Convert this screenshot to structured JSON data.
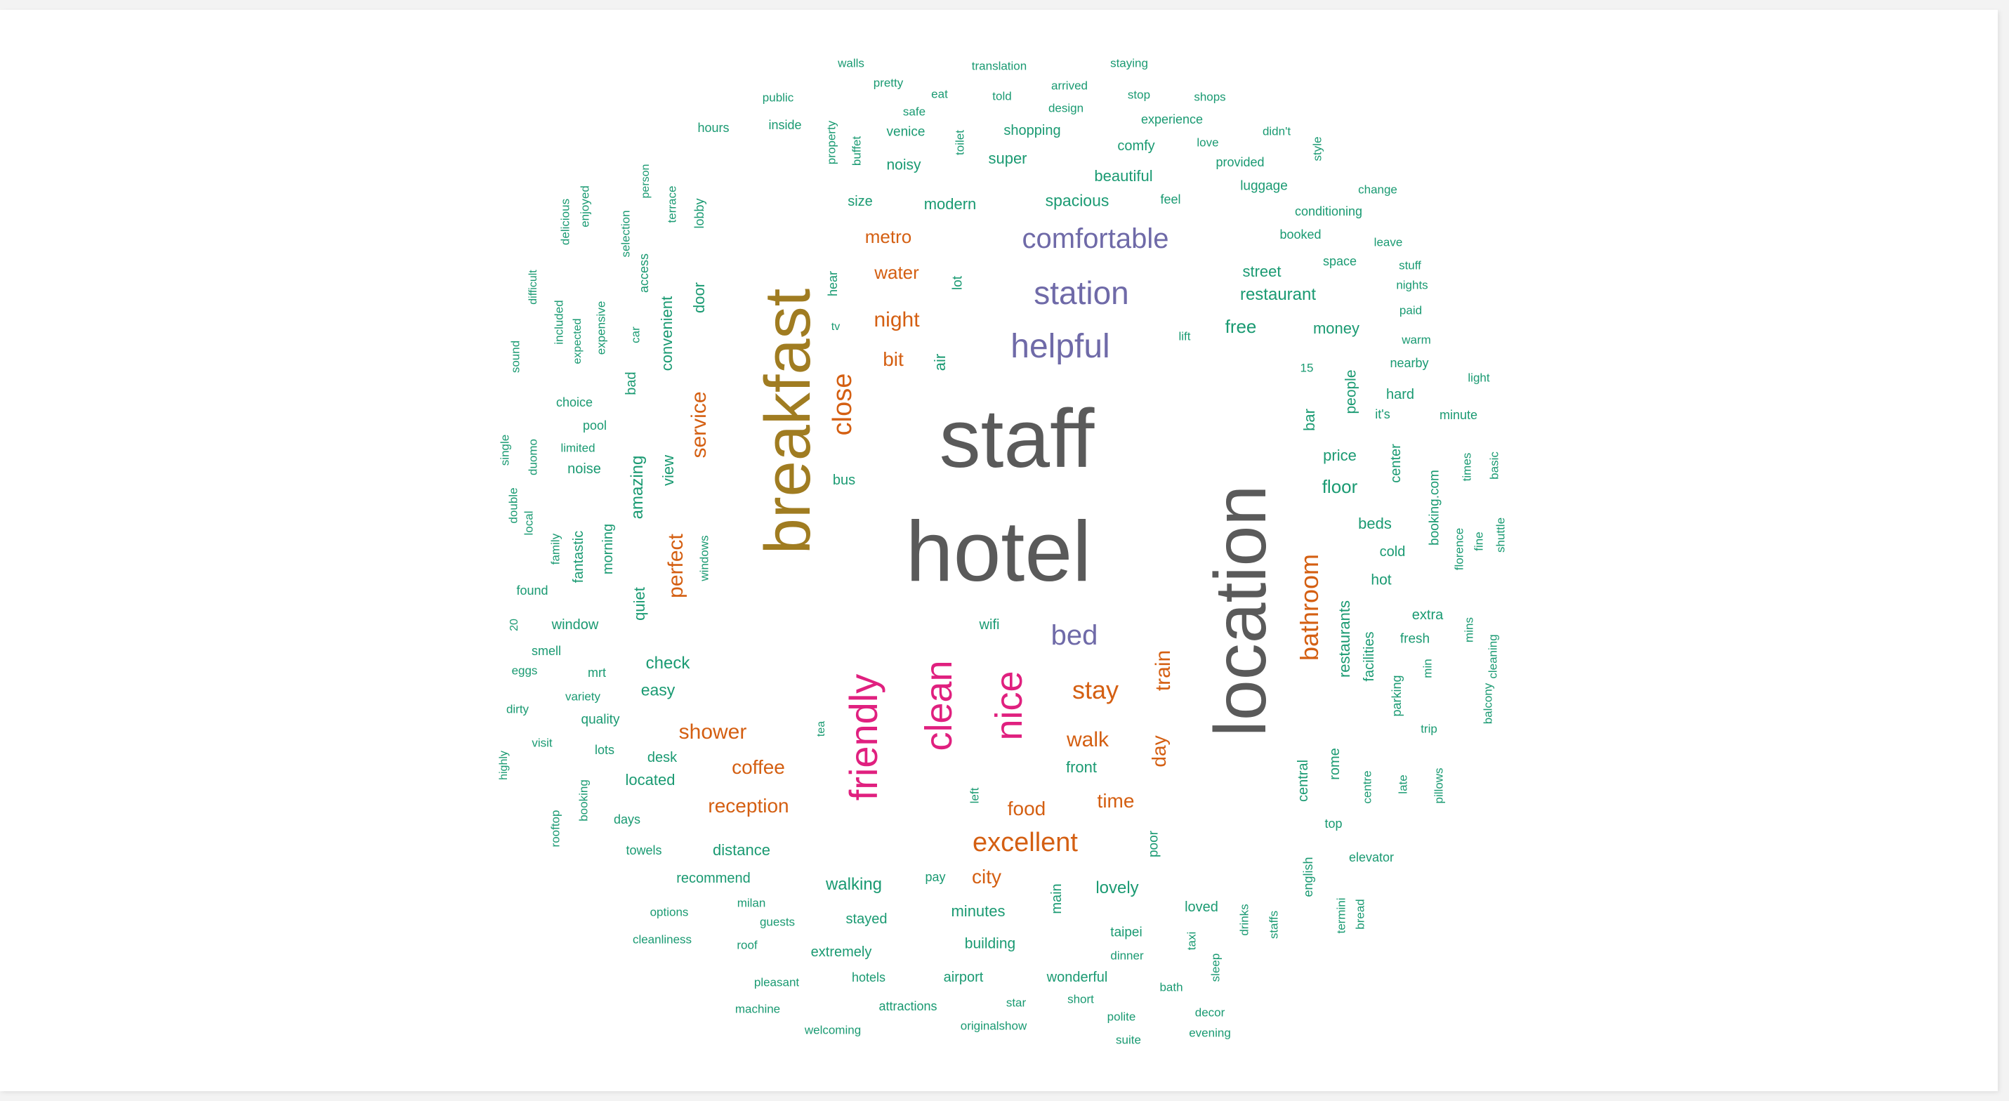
{
  "colors": {
    "gray": "#5a5a5a",
    "olive": "#a07c21",
    "orange": "#d45f12",
    "purple": "#6f6aa8",
    "pink": "#e0207f",
    "green": "#1a9a72"
  },
  "words": [
    {
      "t": "hotel",
      "c": "gray",
      "v": false
    },
    {
      "t": "staff",
      "c": "gray",
      "v": false
    },
    {
      "t": "location",
      "c": "gray",
      "v": true
    },
    {
      "t": "breakfast",
      "c": "olive",
      "v": true
    },
    {
      "t": "comfortable",
      "c": "purple",
      "v": false
    },
    {
      "t": "station",
      "c": "purple",
      "v": false
    },
    {
      "t": "helpful",
      "c": "purple",
      "v": false
    },
    {
      "t": "bed",
      "c": "purple",
      "v": false
    },
    {
      "t": "friendly",
      "c": "pink",
      "v": true
    },
    {
      "t": "clean",
      "c": "pink",
      "v": true
    },
    {
      "t": "nice",
      "c": "pink",
      "v": true
    },
    {
      "t": "metro",
      "c": "orange",
      "v": false
    },
    {
      "t": "water",
      "c": "orange",
      "v": false
    },
    {
      "t": "night",
      "c": "orange",
      "v": false
    },
    {
      "t": "bit",
      "c": "orange",
      "v": false
    },
    {
      "t": "close",
      "c": "orange",
      "v": true
    },
    {
      "t": "service",
      "c": "orange",
      "v": true
    },
    {
      "t": "perfect",
      "c": "orange",
      "v": true
    },
    {
      "t": "shower",
      "c": "orange",
      "v": false
    },
    {
      "t": "coffee",
      "c": "orange",
      "v": false
    },
    {
      "t": "reception",
      "c": "orange",
      "v": false
    },
    {
      "t": "excellent",
      "c": "orange",
      "v": false
    },
    {
      "t": "city",
      "c": "orange",
      "v": false
    },
    {
      "t": "food",
      "c": "orange",
      "v": false
    },
    {
      "t": "time",
      "c": "orange",
      "v": false
    },
    {
      "t": "walk",
      "c": "orange",
      "v": false
    },
    {
      "t": "stay",
      "c": "orange",
      "v": false
    },
    {
      "t": "train",
      "c": "orange",
      "v": true
    },
    {
      "t": "day",
      "c": "orange",
      "v": true
    },
    {
      "t": "bathroom",
      "c": "orange",
      "v": true
    },
    {
      "t": "walls",
      "c": "green",
      "v": false
    },
    {
      "t": "translation",
      "c": "green",
      "v": false
    },
    {
      "t": "staying",
      "c": "green",
      "v": false
    },
    {
      "t": "pretty",
      "c": "green",
      "v": false
    },
    {
      "t": "arrived",
      "c": "green",
      "v": false
    },
    {
      "t": "public",
      "c": "green",
      "v": false
    },
    {
      "t": "eat",
      "c": "green",
      "v": false
    },
    {
      "t": "told",
      "c": "green",
      "v": false
    },
    {
      "t": "stop",
      "c": "green",
      "v": false
    },
    {
      "t": "shops",
      "c": "green",
      "v": false
    },
    {
      "t": "safe",
      "c": "green",
      "v": false
    },
    {
      "t": "design",
      "c": "green",
      "v": false
    },
    {
      "t": "experience",
      "c": "green",
      "v": false
    },
    {
      "t": "hours",
      "c": "green",
      "v": false
    },
    {
      "t": "inside",
      "c": "green",
      "v": false
    },
    {
      "t": "venice",
      "c": "green",
      "v": false
    },
    {
      "t": "shopping",
      "c": "green",
      "v": false
    },
    {
      "t": "didn't",
      "c": "green",
      "v": false
    },
    {
      "t": "property",
      "c": "green",
      "v": true
    },
    {
      "t": "buffet",
      "c": "green",
      "v": true
    },
    {
      "t": "toilet",
      "c": "green",
      "v": true
    },
    {
      "t": "comfy",
      "c": "green",
      "v": false
    },
    {
      "t": "love",
      "c": "green",
      "v": false
    },
    {
      "t": "style",
      "c": "green",
      "v": true
    },
    {
      "t": "super",
      "c": "green",
      "v": false
    },
    {
      "t": "noisy",
      "c": "green",
      "v": false
    },
    {
      "t": "provided",
      "c": "green",
      "v": false
    },
    {
      "t": "person",
      "c": "green",
      "v": true
    },
    {
      "t": "beautiful",
      "c": "green",
      "v": false
    },
    {
      "t": "luggage",
      "c": "green",
      "v": false
    },
    {
      "t": "change",
      "c": "green",
      "v": false
    },
    {
      "t": "terrace",
      "c": "green",
      "v": true
    },
    {
      "t": "enjoyed",
      "c": "green",
      "v": true
    },
    {
      "t": "size",
      "c": "green",
      "v": false
    },
    {
      "t": "modern",
      "c": "green",
      "v": false
    },
    {
      "t": "spacious",
      "c": "green",
      "v": false
    },
    {
      "t": "feel",
      "c": "green",
      "v": false
    },
    {
      "t": "conditioning",
      "c": "green",
      "v": false
    },
    {
      "t": "lobby",
      "c": "green",
      "v": true
    },
    {
      "t": "delicious",
      "c": "green",
      "v": true
    },
    {
      "t": "selection",
      "c": "green",
      "v": true
    },
    {
      "t": "booked",
      "c": "green",
      "v": false
    },
    {
      "t": "leave",
      "c": "green",
      "v": false
    },
    {
      "t": "space",
      "c": "green",
      "v": false
    },
    {
      "t": "stuff",
      "c": "green",
      "v": false
    },
    {
      "t": "access",
      "c": "green",
      "v": true
    },
    {
      "t": "street",
      "c": "green",
      "v": false
    },
    {
      "t": "difficult",
      "c": "green",
      "v": true
    },
    {
      "t": "hear",
      "c": "green",
      "v": true
    },
    {
      "t": "lot",
      "c": "green",
      "v": true
    },
    {
      "t": "nights",
      "c": "green",
      "v": false
    },
    {
      "t": "door",
      "c": "green",
      "v": true
    },
    {
      "t": "restaurant",
      "c": "green",
      "v": false
    },
    {
      "t": "paid",
      "c": "green",
      "v": false
    },
    {
      "t": "convenient",
      "c": "green",
      "v": true
    },
    {
      "t": "expensive",
      "c": "green",
      "v": true
    },
    {
      "t": "included",
      "c": "green",
      "v": true
    },
    {
      "t": "expected",
      "c": "green",
      "v": true
    },
    {
      "t": "car",
      "c": "green",
      "v": true
    },
    {
      "t": "tv",
      "c": "green",
      "v": false
    },
    {
      "t": "free",
      "c": "green",
      "v": false
    },
    {
      "t": "money",
      "c": "green",
      "v": false
    },
    {
      "t": "lift",
      "c": "green",
      "v": false
    },
    {
      "t": "warm",
      "c": "green",
      "v": false
    },
    {
      "t": "sound",
      "c": "green",
      "v": true
    },
    {
      "t": "air",
      "c": "green",
      "v": true
    },
    {
      "t": "nearby",
      "c": "green",
      "v": false
    },
    {
      "t": "15",
      "c": "green",
      "v": false
    },
    {
      "t": "light",
      "c": "green",
      "v": false
    },
    {
      "t": "bad",
      "c": "green",
      "v": true
    },
    {
      "t": "people",
      "c": "green",
      "v": true
    },
    {
      "t": "hard",
      "c": "green",
      "v": false
    },
    {
      "t": "choice",
      "c": "green",
      "v": false
    },
    {
      "t": "bar",
      "c": "green",
      "v": true
    },
    {
      "t": "it's",
      "c": "green",
      "v": false
    },
    {
      "t": "minute",
      "c": "green",
      "v": false
    },
    {
      "t": "pool",
      "c": "green",
      "v": false
    },
    {
      "t": "single",
      "c": "green",
      "v": true
    },
    {
      "t": "limited",
      "c": "green",
      "v": false
    },
    {
      "t": "duomo",
      "c": "green",
      "v": true
    },
    {
      "t": "price",
      "c": "green",
      "v": false
    },
    {
      "t": "noise",
      "c": "green",
      "v": false
    },
    {
      "t": "amazing",
      "c": "green",
      "v": true
    },
    {
      "t": "view",
      "c": "green",
      "v": true
    },
    {
      "t": "bus",
      "c": "green",
      "v": false
    },
    {
      "t": "center",
      "c": "green",
      "v": true
    },
    {
      "t": "times",
      "c": "green",
      "v": true
    },
    {
      "t": "basic",
      "c": "green",
      "v": true
    },
    {
      "t": "floor",
      "c": "green",
      "v": false
    },
    {
      "t": "booking.com",
      "c": "green",
      "v": true
    },
    {
      "t": "double",
      "c": "green",
      "v": true
    },
    {
      "t": "local",
      "c": "green",
      "v": true
    },
    {
      "t": "beds",
      "c": "green",
      "v": false
    },
    {
      "t": "family",
      "c": "green",
      "v": true
    },
    {
      "t": "fantastic",
      "c": "green",
      "v": true
    },
    {
      "t": "morning",
      "c": "green",
      "v": true
    },
    {
      "t": "windows",
      "c": "green",
      "v": true
    },
    {
      "t": "cold",
      "c": "green",
      "v": false
    },
    {
      "t": "florence",
      "c": "green",
      "v": true
    },
    {
      "t": "fine",
      "c": "green",
      "v": true
    },
    {
      "t": "shuttle",
      "c": "green",
      "v": true
    },
    {
      "t": "hot",
      "c": "green",
      "v": false
    },
    {
      "t": "found",
      "c": "green",
      "v": false
    },
    {
      "t": "quiet",
      "c": "green",
      "v": true
    },
    {
      "t": "extra",
      "c": "green",
      "v": false
    },
    {
      "t": "20",
      "c": "green",
      "v": true
    },
    {
      "t": "window",
      "c": "green",
      "v": false
    },
    {
      "t": "wifi",
      "c": "green",
      "v": false
    },
    {
      "t": "mins",
      "c": "green",
      "v": true
    },
    {
      "t": "fresh",
      "c": "green",
      "v": false
    },
    {
      "t": "restaurants",
      "c": "green",
      "v": true
    },
    {
      "t": "facilities",
      "c": "green",
      "v": true
    },
    {
      "t": "cleaning",
      "c": "green",
      "v": true
    },
    {
      "t": "smell",
      "c": "green",
      "v": false
    },
    {
      "t": "check",
      "c": "green",
      "v": false
    },
    {
      "t": "eggs",
      "c": "green",
      "v": false
    },
    {
      "t": "mrt",
      "c": "green",
      "v": false
    },
    {
      "t": "min",
      "c": "green",
      "v": true
    },
    {
      "t": "easy",
      "c": "green",
      "v": false
    },
    {
      "t": "variety",
      "c": "green",
      "v": false
    },
    {
      "t": "parking",
      "c": "green",
      "v": true
    },
    {
      "t": "balcony",
      "c": "green",
      "v": true
    },
    {
      "t": "dirty",
      "c": "green",
      "v": false
    },
    {
      "t": "quality",
      "c": "green",
      "v": false
    },
    {
      "t": "trip",
      "c": "green",
      "v": false
    },
    {
      "t": "tea",
      "c": "green",
      "v": true
    },
    {
      "t": "visit",
      "c": "green",
      "v": false
    },
    {
      "t": "lots",
      "c": "green",
      "v": false
    },
    {
      "t": "highly",
      "c": "green",
      "v": true
    },
    {
      "t": "desk",
      "c": "green",
      "v": false
    },
    {
      "t": "front",
      "c": "green",
      "v": false
    },
    {
      "t": "located",
      "c": "green",
      "v": false
    },
    {
      "t": "central",
      "c": "green",
      "v": true
    },
    {
      "t": "rome",
      "c": "green",
      "v": true
    },
    {
      "t": "centre",
      "c": "green",
      "v": true
    },
    {
      "t": "late",
      "c": "green",
      "v": true
    },
    {
      "t": "pillows",
      "c": "green",
      "v": true
    },
    {
      "t": "left",
      "c": "green",
      "v": true
    },
    {
      "t": "booking",
      "c": "green",
      "v": true
    },
    {
      "t": "rooftop",
      "c": "green",
      "v": true
    },
    {
      "t": "days",
      "c": "green",
      "v": false
    },
    {
      "t": "top",
      "c": "green",
      "v": false
    },
    {
      "t": "poor",
      "c": "green",
      "v": true
    },
    {
      "t": "towels",
      "c": "green",
      "v": false
    },
    {
      "t": "distance",
      "c": "green",
      "v": false
    },
    {
      "t": "elevator",
      "c": "green",
      "v": false
    },
    {
      "t": "pay",
      "c": "green",
      "v": false
    },
    {
      "t": "recommend",
      "c": "green",
      "v": false
    },
    {
      "t": "english",
      "c": "green",
      "v": true
    },
    {
      "t": "walking",
      "c": "green",
      "v": false
    },
    {
      "t": "lovely",
      "c": "green",
      "v": false
    },
    {
      "t": "main",
      "c": "green",
      "v": true
    },
    {
      "t": "milan",
      "c": "green",
      "v": false
    },
    {
      "t": "options",
      "c": "green",
      "v": false
    },
    {
      "t": "minutes",
      "c": "green",
      "v": false
    },
    {
      "t": "loved",
      "c": "green",
      "v": false
    },
    {
      "t": "drinks",
      "c": "green",
      "v": true
    },
    {
      "t": "staffs",
      "c": "green",
      "v": true
    },
    {
      "t": "termini",
      "c": "green",
      "v": true
    },
    {
      "t": "bread",
      "c": "green",
      "v": true
    },
    {
      "t": "guests",
      "c": "green",
      "v": false
    },
    {
      "t": "stayed",
      "c": "green",
      "v": false
    },
    {
      "t": "taipei",
      "c": "green",
      "v": false
    },
    {
      "t": "taxi",
      "c": "green",
      "v": true
    },
    {
      "t": "cleanliness",
      "c": "green",
      "v": false
    },
    {
      "t": "roof",
      "c": "green",
      "v": false
    },
    {
      "t": "building",
      "c": "green",
      "v": false
    },
    {
      "t": "extremely",
      "c": "green",
      "v": false
    },
    {
      "t": "dinner",
      "c": "green",
      "v": false
    },
    {
      "t": "sleep",
      "c": "green",
      "v": true
    },
    {
      "t": "pleasant",
      "c": "green",
      "v": false
    },
    {
      "t": "hotels",
      "c": "green",
      "v": false
    },
    {
      "t": "airport",
      "c": "green",
      "v": false
    },
    {
      "t": "wonderful",
      "c": "green",
      "v": false
    },
    {
      "t": "bath",
      "c": "green",
      "v": false
    },
    {
      "t": "star",
      "c": "green",
      "v": false
    },
    {
      "t": "short",
      "c": "green",
      "v": false
    },
    {
      "t": "machine",
      "c": "green",
      "v": false
    },
    {
      "t": "attractions",
      "c": "green",
      "v": false
    },
    {
      "t": "decor",
      "c": "green",
      "v": false
    },
    {
      "t": "polite",
      "c": "green",
      "v": false
    },
    {
      "t": "originalshow",
      "c": "green",
      "v": false
    },
    {
      "t": "welcoming",
      "c": "green",
      "v": false
    },
    {
      "t": "evening",
      "c": "green",
      "v": false
    },
    {
      "t": "suite",
      "c": "green",
      "v": false
    }
  ]
}
